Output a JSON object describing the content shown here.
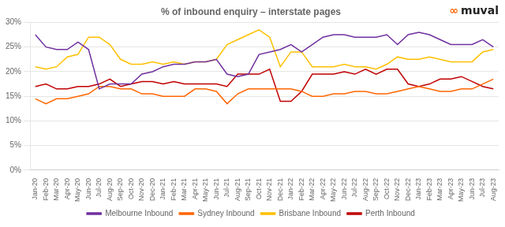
{
  "chart_data": {
    "type": "line",
    "title": "% of inbound enquiry – interstate pages",
    "categories": [
      "Jan-20",
      "Feb-20",
      "Mar-20",
      "Apr-20",
      "May-20",
      "Jun-20",
      "Jul-20",
      "Aug-20",
      "Sep-20",
      "Oct-20",
      "Nov-20",
      "Dec-20",
      "Jan-21",
      "Feb-21",
      "Mar-21",
      "Apr-21",
      "May-21",
      "Jun-21",
      "Jul-21",
      "Aug-21",
      "Sep-21",
      "Oct-21",
      "Nov-21",
      "Dec-21",
      "Jan-22",
      "Feb-22",
      "Mar-22",
      "Apr-22",
      "May-22",
      "Jun-22",
      "Jul-22",
      "Aug-22",
      "Sep-22",
      "Oct-22",
      "Nov-22",
      "Dec-22",
      "Jan-23",
      "Feb-23",
      "Mar-23",
      "Apr-23",
      "May-23",
      "Jun-23",
      "Jul-23",
      "Aug-23"
    ],
    "series": [
      {
        "name": "Melbourne Inbound",
        "color": "#7030A0",
        "values": [
          27.5,
          25.0,
          24.5,
          24.5,
          26.0,
          24.5,
          16.5,
          17.5,
          17.5,
          17.5,
          19.5,
          20.0,
          21.0,
          21.5,
          21.5,
          22.0,
          22.0,
          22.5,
          19.5,
          19.0,
          19.5,
          23.5,
          24.0,
          24.5,
          25.5,
          24.0,
          25.5,
          27.0,
          27.5,
          27.5,
          27.0,
          27.0,
          27.0,
          27.5,
          25.5,
          27.5,
          28.0,
          27.5,
          26.5,
          25.5,
          25.5,
          25.5,
          26.5,
          25.0
        ]
      },
      {
        "name": "Sydney Inbound",
        "color": "#FF6600",
        "values": [
          14.5,
          13.5,
          14.5,
          14.5,
          15.0,
          15.5,
          17.0,
          17.0,
          16.5,
          16.5,
          15.5,
          15.5,
          15.0,
          15.0,
          15.0,
          16.5,
          16.5,
          16.0,
          13.5,
          15.5,
          16.5,
          16.5,
          16.5,
          16.5,
          16.5,
          16.0,
          15.0,
          15.0,
          15.5,
          15.5,
          16.0,
          16.0,
          15.5,
          15.5,
          16.0,
          16.5,
          17.0,
          16.5,
          16.0,
          16.0,
          16.5,
          16.5,
          17.5,
          18.5
        ]
      },
      {
        "name": "Brisbane Inbound",
        "color": "#FFC000",
        "values": [
          21.0,
          20.5,
          21.0,
          23.0,
          23.5,
          27.0,
          27.0,
          25.5,
          22.5,
          21.5,
          21.5,
          22.0,
          21.5,
          22.0,
          21.5,
          22.0,
          22.0,
          22.5,
          25.5,
          26.5,
          27.5,
          28.5,
          27.0,
          21.0,
          24.0,
          24.0,
          21.0,
          21.0,
          21.0,
          21.5,
          21.0,
          21.0,
          20.5,
          21.5,
          23.0,
          22.5,
          22.5,
          23.0,
          22.5,
          22.0,
          22.0,
          22.0,
          24.0,
          24.5
        ]
      },
      {
        "name": "Perth Inbound",
        "color": "#C00000",
        "values": [
          17.0,
          17.5,
          16.5,
          16.5,
          17.0,
          17.0,
          17.5,
          18.5,
          17.0,
          17.5,
          18.0,
          18.0,
          17.5,
          18.0,
          17.5,
          17.5,
          17.5,
          17.5,
          17.0,
          19.5,
          19.5,
          19.5,
          20.5,
          14.0,
          14.0,
          16.0,
          19.5,
          19.5,
          19.5,
          20.0,
          19.5,
          20.5,
          19.5,
          20.5,
          20.5,
          17.5,
          17.0,
          17.5,
          18.5,
          18.5,
          19.0,
          18.0,
          17.0,
          16.5
        ]
      }
    ],
    "ylim": [
      0,
      30
    ],
    "yticks": [
      {
        "value": 0,
        "label": "0%"
      },
      {
        "value": 5,
        "label": "5%"
      },
      {
        "value": 10,
        "label": "10%"
      },
      {
        "value": 15,
        "label": "15%"
      },
      {
        "value": 20,
        "label": "20%"
      },
      {
        "value": 25,
        "label": "25%"
      },
      {
        "value": 30,
        "label": "30%"
      }
    ],
    "grid": true,
    "legend": "bottom",
    "annotations": [
      {
        "text": "∞",
        "color": "#FF6600"
      },
      {
        "text": "muval",
        "color": "#222222"
      }
    ]
  }
}
